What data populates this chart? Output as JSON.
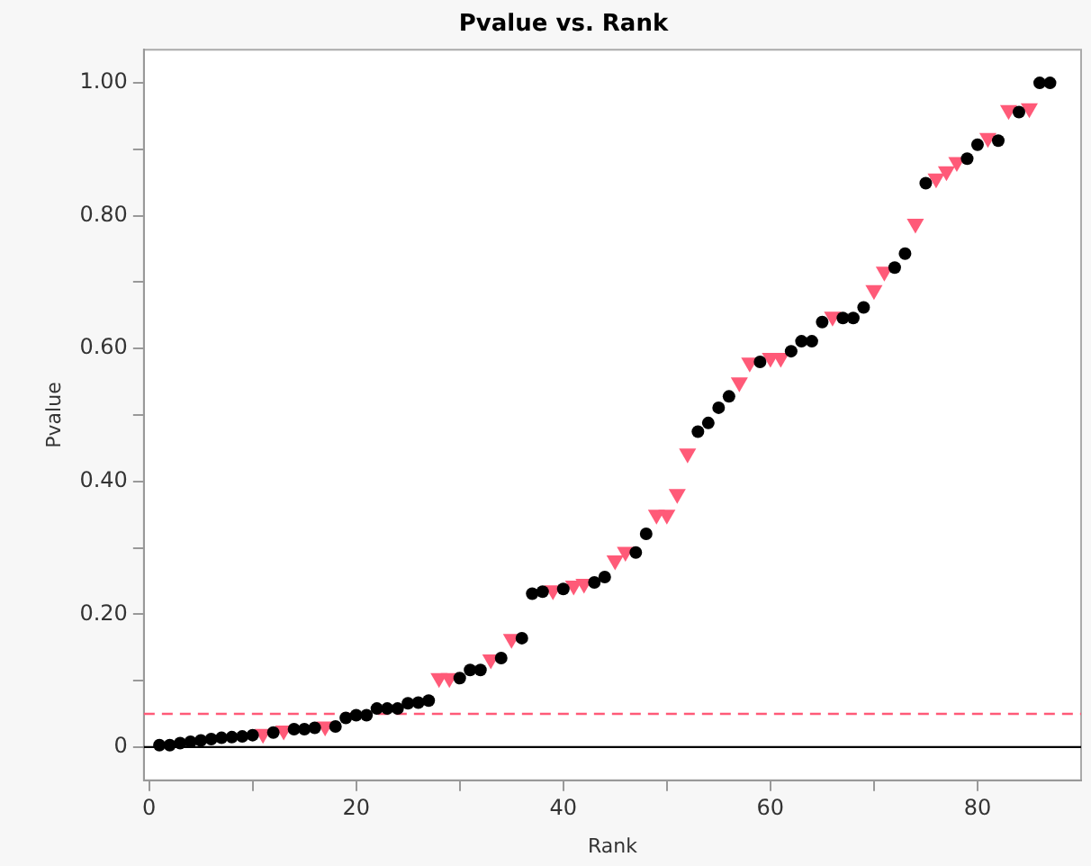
{
  "chart_data": {
    "type": "scatter",
    "title": "Pvalue vs. Rank",
    "xlabel": "Rank",
    "ylabel": "Pvalue",
    "xlim": [
      -0.5,
      90
    ],
    "ylim": [
      -0.05,
      1.05
    ],
    "xticks": [
      0,
      {
        "value": 10,
        "label": null
      },
      20,
      {
        "value": 30,
        "label": null
      },
      40,
      {
        "value": 50,
        "label": null
      },
      60,
      {
        "value": 70,
        "label": null
      },
      80
    ],
    "yticks": [
      0,
      {
        "value": 0.1,
        "label": null
      },
      {
        "value": 0.2,
        "label": "0.20"
      },
      {
        "value": 0.3,
        "label": null
      },
      {
        "value": 0.4,
        "label": "0.40"
      },
      {
        "value": 0.5,
        "label": null
      },
      {
        "value": 0.6,
        "label": "0.60"
      },
      {
        "value": 0.7,
        "label": null
      },
      {
        "value": 0.8,
        "label": "0.80"
      },
      {
        "value": 0.9,
        "label": null
      },
      {
        "value": 1,
        "label": "1.00"
      }
    ],
    "grid": false,
    "legend": false,
    "ref_lines": [
      {
        "axis": "y",
        "value": 0,
        "color": "#000000",
        "line_style": "solid"
      },
      {
        "axis": "y",
        "value": 0.05,
        "color": "#ff5a78",
        "line_style": "dashed"
      }
    ],
    "series": [
      {
        "color": "#000000",
        "marker": "circle",
        "x": [
          1,
          2,
          3,
          4,
          5,
          6,
          7,
          8,
          9,
          10,
          12,
          14,
          15,
          16,
          18,
          19,
          20,
          21,
          22,
          23,
          24,
          25,
          26,
          27,
          30,
          31,
          32,
          34,
          36,
          37,
          38,
          40,
          43,
          44,
          47,
          48,
          53,
          54,
          55,
          56,
          59,
          62,
          63,
          64,
          65,
          67,
          68,
          69,
          72,
          73,
          75,
          79,
          80,
          82,
          84,
          86,
          87
        ],
        "values": [
          0.003,
          0.003,
          0.006,
          0.008,
          0.01,
          0.012,
          0.014,
          0.015,
          0.016,
          0.018,
          0.022,
          0.027,
          0.027,
          0.029,
          0.031,
          0.044,
          0.048,
          0.048,
          0.058,
          0.058,
          0.058,
          0.066,
          0.067,
          0.07,
          0.104,
          0.116,
          0.116,
          0.134,
          0.164,
          0.231,
          0.234,
          0.238,
          0.248,
          0.256,
          0.293,
          0.321,
          0.475,
          0.488,
          0.511,
          0.528,
          0.58,
          0.596,
          0.611,
          0.611,
          0.64,
          0.646,
          0.646,
          0.662,
          0.722,
          0.743,
          0.849,
          0.886,
          0.907,
          0.913,
          0.956,
          1.0,
          1.0
        ]
      },
      {
        "color": "#ff5a78",
        "marker": "triangle",
        "x": [
          11,
          13,
          17,
          28,
          29,
          33,
          35,
          39,
          41,
          42,
          45,
          46,
          49,
          50,
          51,
          52,
          57,
          58,
          60,
          61,
          66,
          70,
          71,
          74,
          76,
          77,
          78,
          81,
          83,
          85
        ],
        "values": [
          0.02,
          0.025,
          0.031,
          0.104,
          0.104,
          0.132,
          0.163,
          0.236,
          0.243,
          0.246,
          0.281,
          0.294,
          0.35,
          0.35,
          0.381,
          0.442,
          0.549,
          0.579,
          0.586,
          0.586,
          0.648,
          0.688,
          0.716,
          0.788,
          0.856,
          0.867,
          0.881,
          0.917,
          0.959,
          0.962
        ]
      }
    ]
  }
}
